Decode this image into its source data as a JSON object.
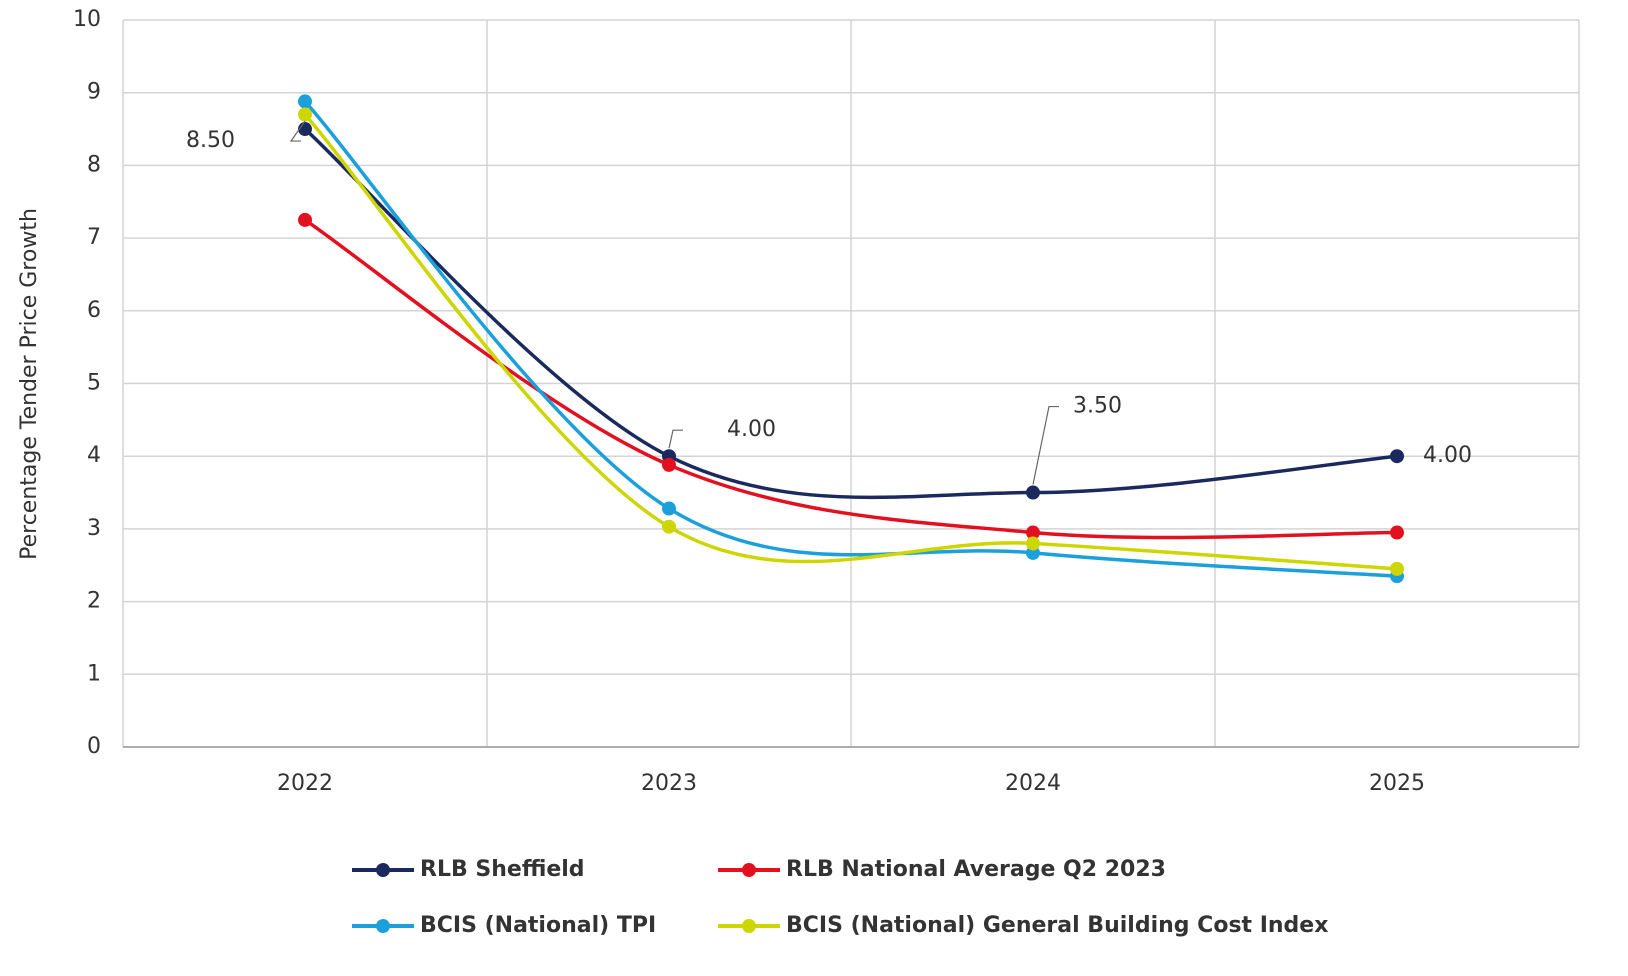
{
  "chart_data": {
    "type": "line",
    "y_label": "Percentage Tender Price Growth",
    "categories": [
      "2022",
      "2023",
      "2024",
      "2025"
    ],
    "series": [
      {
        "name": "RLB Sheffield",
        "color": "#1b2a5e",
        "values": [
          8.5,
          4.0,
          3.5,
          4.0
        ],
        "value_labels": [
          "8.50",
          "4.00",
          "3.50",
          "4.00"
        ]
      },
      {
        "name": "RLB National Average Q2 2023",
        "color": "#e3101f",
        "values": [
          7.25,
          3.88,
          2.95,
          2.95
        ]
      },
      {
        "name": "BCIS (National) TPI",
        "color": "#1ba0dc",
        "values": [
          8.88,
          3.28,
          2.67,
          2.35
        ]
      },
      {
        "name": "BCIS (National) General Building Cost Index",
        "color": "#cdd600",
        "values": [
          8.7,
          3.03,
          2.8,
          2.45
        ]
      }
    ],
    "ylim": [
      0,
      10
    ],
    "yticks": [
      0,
      1,
      2,
      3,
      4,
      5,
      6,
      7,
      8,
      9,
      10
    ],
    "grid": true
  }
}
